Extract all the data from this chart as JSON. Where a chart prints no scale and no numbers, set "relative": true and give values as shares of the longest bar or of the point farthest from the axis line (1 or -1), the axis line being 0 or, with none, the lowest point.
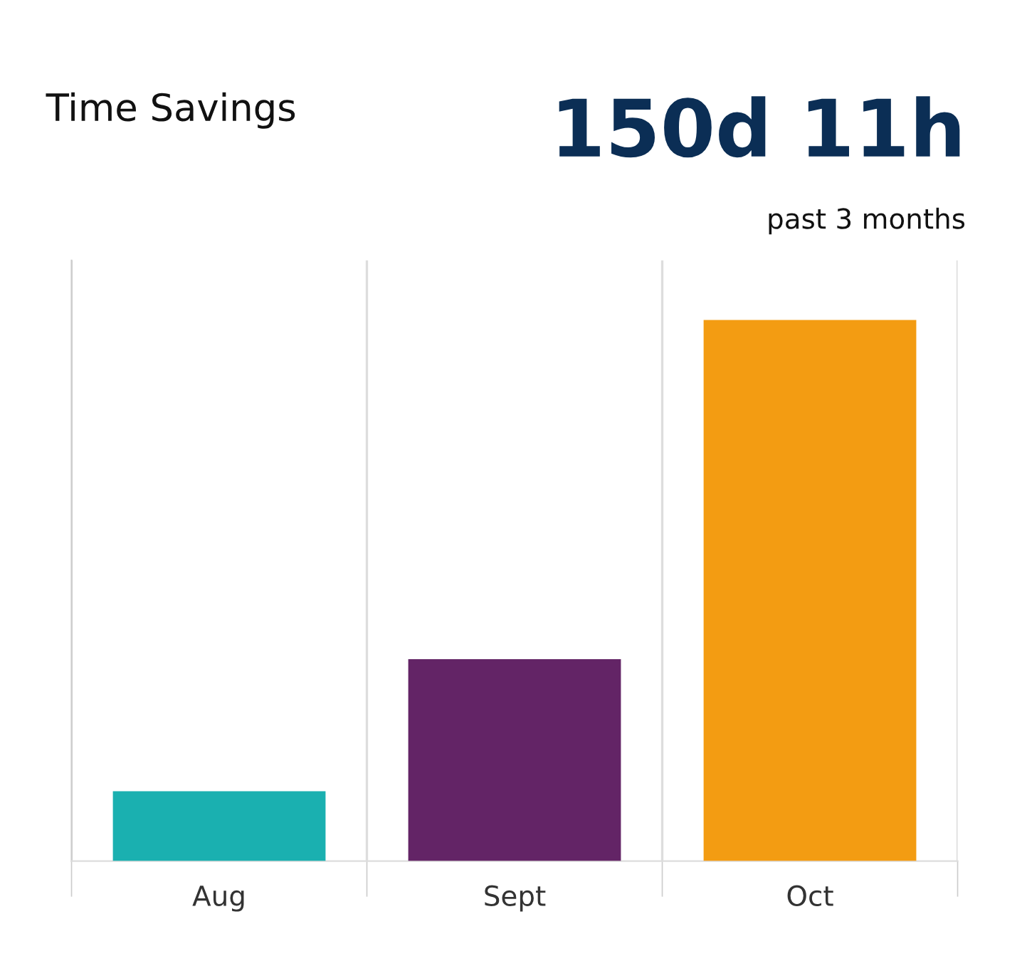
{
  "chart_data": {
    "type": "bar",
    "title": "Time Savings",
    "subtitle": "150d 11h",
    "annotations": [
      "past 3 months"
    ],
    "categories": [
      "Aug",
      "Sept",
      "Oct"
    ],
    "values": [
      0.129,
      0.373,
      1
    ],
    "colors": [
      "#1ab0b0",
      "#632466",
      "#f39c12"
    ],
    "relative": true,
    "grid": "x"
  }
}
